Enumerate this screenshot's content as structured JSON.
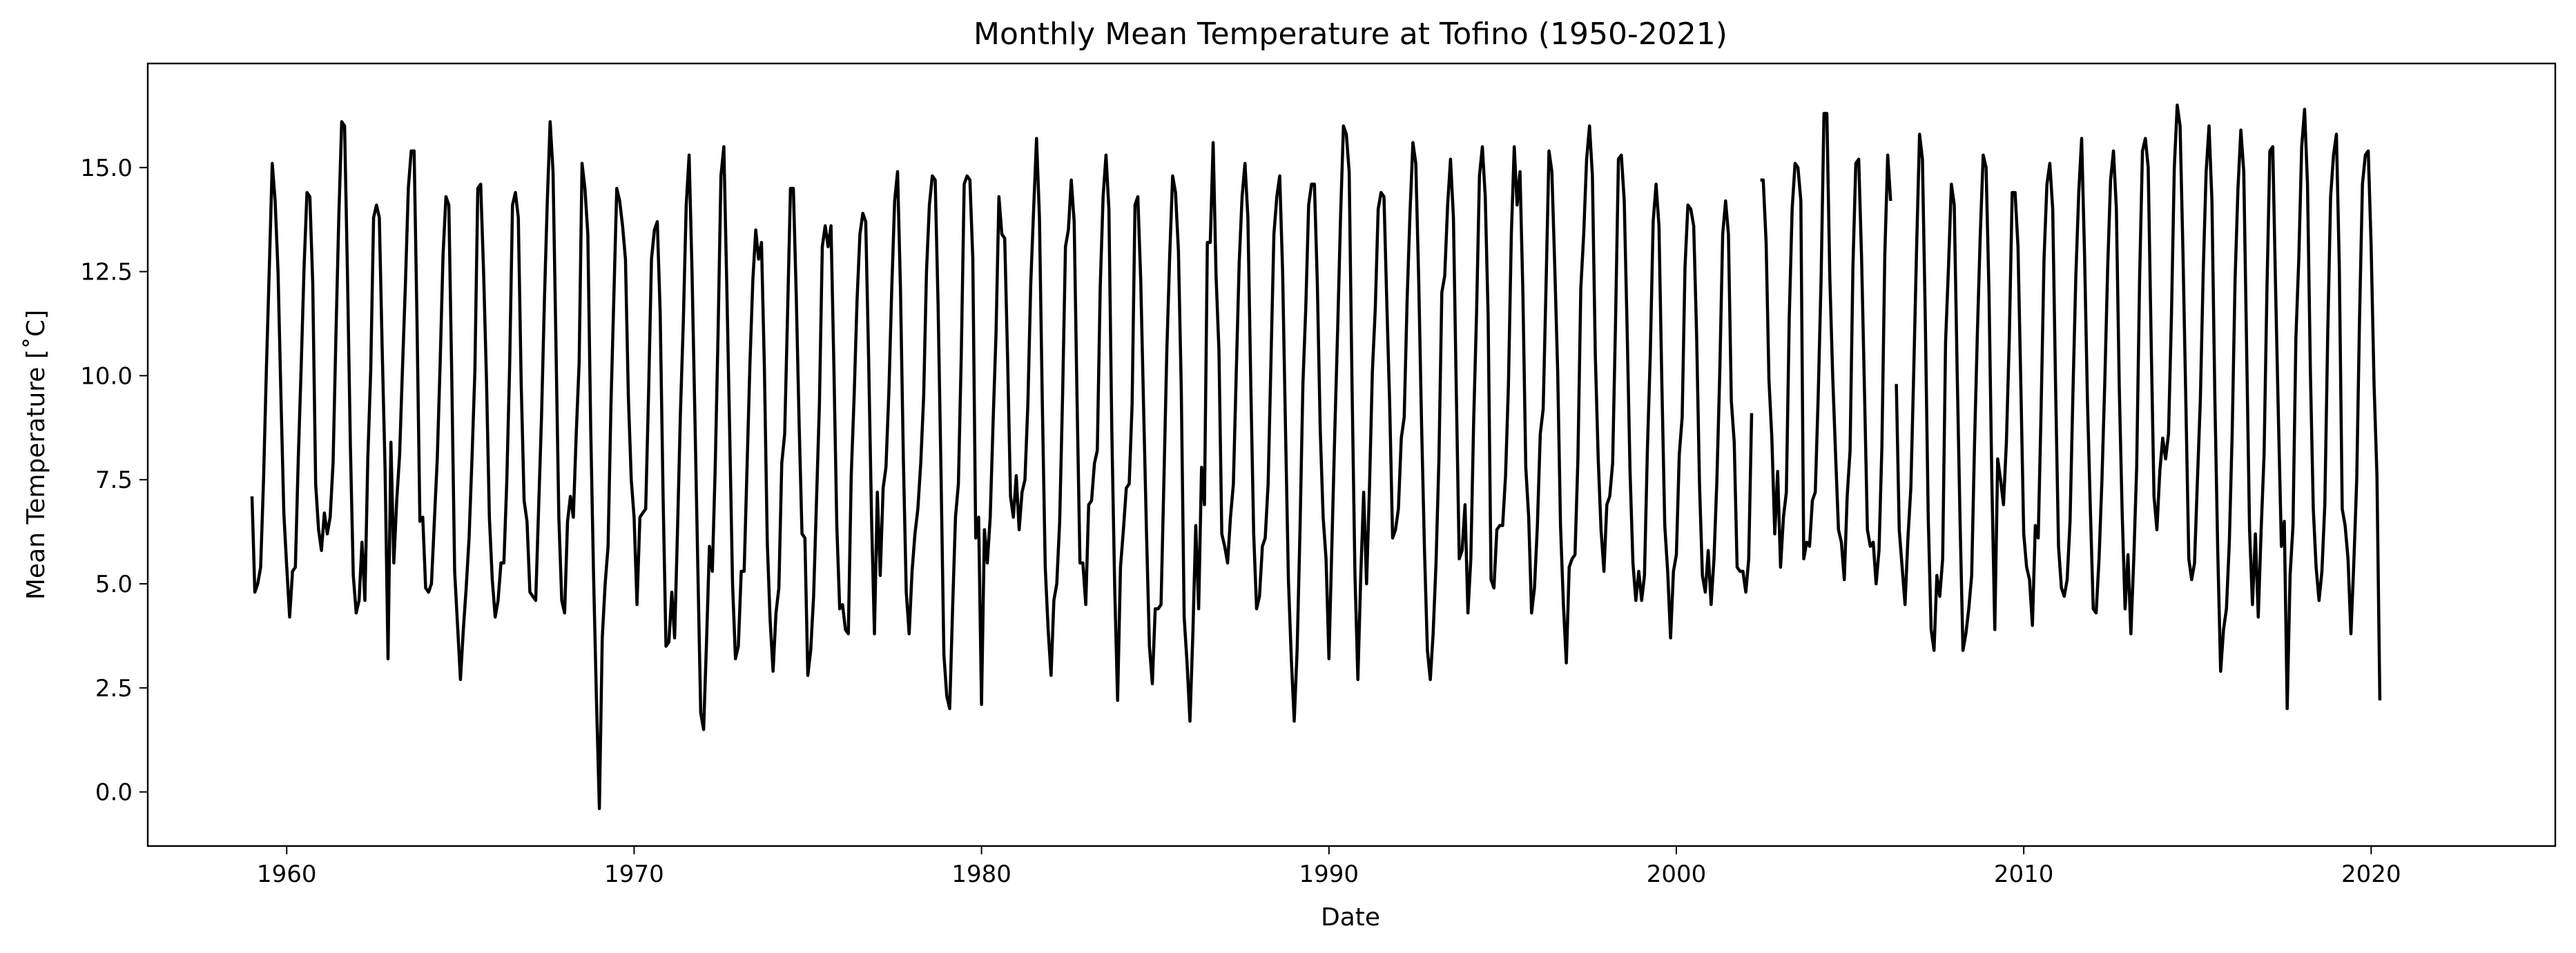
{
  "chart_data": {
    "type": "line",
    "title": "Monthly Mean Temperature at Tofino (1950-2021)",
    "xlabel": "Date",
    "ylabel": "Mean Temperature [˚C]",
    "xlim": [
      1956.0,
      2025.3
    ],
    "ylim": [
      -1.3,
      17.5
    ],
    "xticks": [
      1960,
      1970,
      1980,
      1990,
      2000,
      2010,
      2020
    ],
    "yticks": [
      0.0,
      2.5,
      5.0,
      7.5,
      10.0,
      12.5,
      15.0
    ],
    "ytick_labels": [
      "0.0",
      "2.5",
      "5.0",
      "7.5",
      "10.0",
      "12.5",
      "15.0"
    ],
    "grid": false,
    "line_color": "#000000",
    "start": [
      1959,
      1
    ],
    "series": [
      {
        "values": [
          7.1,
          4.8,
          5.0,
          5.4,
          7.5,
          10.2,
          12.6,
          15.1,
          14.2,
          12.5,
          9.5,
          6.7,
          5.4,
          4.2,
          5.3,
          5.4,
          8.0,
          10.2,
          12.6,
          14.4,
          14.3,
          12.2,
          7.4,
          6.3,
          5.8,
          6.7,
          6.2,
          6.6,
          7.9,
          11.0,
          13.8,
          16.1,
          16.0,
          12.4,
          8.3,
          5.2,
          4.3,
          4.6,
          6.0,
          4.6,
          8.0,
          10.1,
          13.8,
          14.1,
          13.8,
          10.6,
          7.7,
          3.2,
          8.4,
          5.5,
          7.0,
          8.1,
          10.2,
          12.2,
          14.5,
          15.4,
          15.4,
          11.3,
          6.5,
          6.6,
          4.9,
          4.8,
          5.0,
          6.5,
          8.0,
          10.3,
          12.9,
          14.3,
          14.1,
          10.0,
          5.3,
          4.0,
          2.7,
          3.9,
          4.9,
          6.1,
          8.0,
          10.1,
          14.5,
          14.6,
          12.5,
          9.9,
          6.6,
          5.1,
          4.2,
          4.6,
          5.5,
          5.5,
          7.4,
          10.2,
          14.1,
          14.4,
          13.8,
          9.8,
          7.0,
          6.5,
          4.8,
          4.7,
          4.6,
          6.8,
          9.0,
          11.8,
          14.2,
          16.1,
          14.9,
          10.8,
          6.6,
          4.6,
          4.3,
          6.5,
          7.1,
          6.6,
          8.6,
          10.3,
          15.1,
          14.5,
          13.4,
          8.8,
          5.2,
          2.2,
          -0.4,
          3.7,
          5.0,
          5.9,
          9.3,
          11.9,
          14.5,
          14.2,
          13.6,
          12.8,
          9.5,
          7.5,
          6.6,
          4.5,
          6.6,
          6.7,
          6.8,
          9.6,
          12.8,
          13.5,
          13.7,
          11.5,
          7.1,
          3.5,
          3.6,
          4.8,
          3.7,
          6.3,
          9.1,
          11.3,
          14.1,
          15.3,
          12.5,
          9.0,
          5.4,
          1.9,
          1.5,
          3.6,
          5.9,
          5.3,
          7.8,
          11.0,
          14.8,
          15.5,
          12.2,
          8.7,
          5.0,
          3.2,
          3.5,
          5.3,
          5.3,
          7.8,
          10.3,
          12.3,
          13.5,
          12.8,
          13.2,
          10.2,
          6.0,
          4.1,
          2.9,
          4.3,
          4.9,
          7.9,
          8.6,
          11.5,
          14.5,
          14.5,
          11.9,
          8.8,
          6.2,
          6.1,
          2.8,
          3.4,
          4.7,
          7.0,
          9.3,
          13.1,
          13.6,
          13.1,
          13.6,
          10.2,
          6.4,
          4.4,
          4.5,
          3.9,
          3.8,
          7.6,
          9.5,
          11.8,
          13.4,
          13.9,
          13.7,
          10.4,
          6.6,
          3.8,
          7.2,
          5.2,
          7.3,
          7.8,
          9.6,
          12.1,
          14.2,
          14.9,
          12.1,
          8.0,
          4.8,
          3.8,
          5.3,
          6.2,
          6.8,
          7.9,
          9.5,
          12.5,
          14.1,
          14.8,
          14.7,
          11.7,
          7.7,
          3.3,
          2.3,
          2.0,
          4.4,
          6.6,
          7.4,
          10.5,
          14.6,
          14.8,
          14.7,
          12.8,
          6.1,
          6.6,
          2.1,
          6.3,
          5.5,
          6.6,
          8.9,
          11.0,
          14.3,
          13.4,
          13.3,
          10.4,
          7.1,
          6.6,
          7.6,
          6.3,
          7.2,
          7.5,
          9.3,
          12.2,
          14.0,
          15.7,
          13.8,
          9.3,
          5.4,
          3.9,
          2.8,
          4.6,
          5.0,
          6.5,
          9.5,
          13.1,
          13.5,
          14.7,
          13.7,
          9.4,
          5.5,
          5.5,
          4.5,
          6.9,
          7.0,
          7.9,
          8.2,
          12.1,
          14.3,
          15.3,
          14.0,
          8.7,
          4.9,
          2.2,
          5.4,
          6.3,
          7.3,
          7.4,
          9.3,
          14.1,
          14.3,
          12.3,
          9.2,
          6.2,
          3.5,
          2.6,
          4.4,
          4.4,
          4.5,
          7.5,
          10.6,
          12.9,
          14.8,
          14.4,
          13.0,
          9.7,
          4.2,
          3.1,
          1.7,
          3.8,
          6.4,
          4.4,
          7.8,
          6.9,
          13.2,
          13.2,
          15.6,
          12.4,
          10.6,
          6.2,
          5.9,
          5.5,
          6.6,
          7.4,
          10.1,
          12.7,
          14.3,
          15.1,
          13.8,
          9.8,
          6.2,
          4.4,
          4.7,
          5.9,
          6.1,
          7.4,
          10.4,
          13.4,
          14.3,
          14.8,
          12.5,
          8.7,
          5.1,
          3.2,
          1.7,
          3.4,
          6.3,
          9.8,
          11.6,
          14.1,
          14.6,
          14.6,
          12.2,
          8.7,
          6.6,
          5.6,
          3.2,
          5.9,
          8.6,
          11.1,
          13.8,
          16.0,
          15.8,
          14.9,
          9.7,
          5.2,
          2.7,
          5.2,
          7.2,
          5.0,
          7.3,
          10.1,
          11.6,
          14.0,
          14.4,
          14.3,
          11.7,
          9.3,
          6.1,
          6.3,
          6.8,
          8.5,
          9.0,
          11.8,
          13.9,
          15.6,
          15.1,
          12.3,
          8.8,
          5.8,
          3.4,
          2.7,
          3.8,
          5.5,
          8.0,
          12.0,
          12.4,
          14.1,
          15.2,
          13.8,
          9.6,
          5.6,
          5.8,
          6.9,
          4.3,
          5.6,
          8.9,
          11.5,
          14.8,
          15.5,
          14.3,
          11.4,
          5.1,
          4.9,
          6.3,
          6.4,
          6.4,
          7.6,
          9.8,
          13.4,
          15.5,
          14.1,
          14.9,
          12.0,
          7.8,
          6.6,
          4.3,
          4.9,
          6.4,
          8.6,
          9.2,
          12.2,
          15.4,
          14.9,
          12.6,
          10.1,
          6.4,
          4.5,
          3.1,
          5.4,
          5.6,
          5.7,
          8.0,
          12.1,
          13.4,
          15.2,
          16.0,
          14.8,
          10.5,
          8.0,
          6.3,
          5.3,
          6.9,
          7.1,
          7.9,
          11.3,
          15.2,
          15.3,
          14.2,
          11.1,
          7.7,
          5.5,
          4.6,
          5.3,
          4.6,
          5.2,
          8.2,
          10.5,
          13.7,
          14.6,
          13.6,
          9.8,
          6.4,
          5.3,
          3.7,
          5.3,
          5.7,
          8.1,
          9.0,
          12.6,
          14.1,
          14.0,
          13.6,
          11.0,
          7.4,
          5.2,
          4.8,
          5.8,
          4.5,
          5.6,
          7.5,
          10.1,
          13.4,
          14.2,
          13.4,
          9.4,
          8.4,
          5.4,
          5.3,
          5.3,
          4.8,
          5.6,
          9.1,
          null,
          null,
          14.7,
          14.7,
          13.2,
          9.9,
          8.5,
          6.2,
          7.7,
          5.4,
          6.6,
          7.2,
          11.4,
          14.0,
          15.1,
          15.0,
          14.2,
          5.6,
          6.0,
          5.9,
          7.0,
          7.2,
          9.5,
          12.3,
          16.3,
          16.3,
          12.4,
          10.0,
          8.1,
          6.3,
          6.0,
          5.1,
          7.1,
          8.2,
          12.6,
          15.1,
          15.2,
          12.8,
          9.6,
          6.3,
          5.9,
          6.0,
          5.0,
          5.8,
          8.3,
          12.9,
          15.3,
          14.2,
          null,
          9.8,
          6.3,
          5.4,
          4.5,
          6.1,
          7.3,
          10.1,
          13.1,
          15.8,
          15.2,
          11.3,
          6.6,
          3.9,
          3.4,
          5.2,
          4.7,
          5.6,
          10.8,
          12.6,
          14.6,
          14.1,
          10.1,
          6.5,
          3.4,
          3.8,
          4.4,
          5.2,
          8.4,
          11.1,
          13.4,
          15.3,
          15.0,
          12.0,
          7.4,
          3.9,
          8.0,
          7.5,
          6.9,
          8.4,
          10.9,
          14.4,
          14.4,
          13.1,
          9.8,
          6.2,
          5.4,
          5.1,
          4.0,
          6.4,
          6.1,
          9.2,
          12.8,
          14.6,
          15.1,
          14.0,
          9.7,
          5.9,
          4.9,
          4.7,
          5.1,
          6.5,
          9.6,
          12.4,
          14.4,
          15.7,
          12.9,
          9.4,
          6.8,
          4.4,
          4.3,
          5.6,
          7.5,
          9.9,
          12.6,
          14.7,
          15.4,
          14.0,
          9.7,
          6.7,
          4.4,
          5.7,
          3.8,
          5.6,
          7.8,
          12.3,
          15.4,
          15.7,
          15.0,
          10.9,
          7.1,
          6.3,
          7.7,
          8.5,
          8.0,
          8.6,
          11.4,
          15.0,
          16.5,
          16.0,
          12.9,
          9.3,
          5.6,
          5.1,
          5.5,
          7.5,
          9.4,
          12.5,
          14.9,
          16.0,
          14.2,
          9.5,
          5.8,
          2.9,
          3.9,
          4.4,
          6.0,
          8.6,
          12.3,
          14.5,
          15.9,
          14.9,
          10.6,
          6.3,
          4.5,
          6.2,
          4.2,
          6.3,
          8.1,
          12.1,
          15.4,
          15.5,
          12.1,
          8.9,
          5.9,
          6.5,
          2.0,
          5.2,
          6.4,
          10.9,
          12.8,
          15.5,
          16.4,
          14.6,
          10.1,
          6.8,
          5.4,
          4.6,
          5.3,
          6.9,
          11.0,
          14.3,
          15.3,
          15.8,
          12.6,
          6.8,
          6.4,
          5.6,
          3.8,
          5.5,
          7.5,
          11.4,
          14.6,
          15.3,
          15.4,
          13.1,
          9.8,
          7.6,
          2.2
        ]
      }
    ]
  }
}
